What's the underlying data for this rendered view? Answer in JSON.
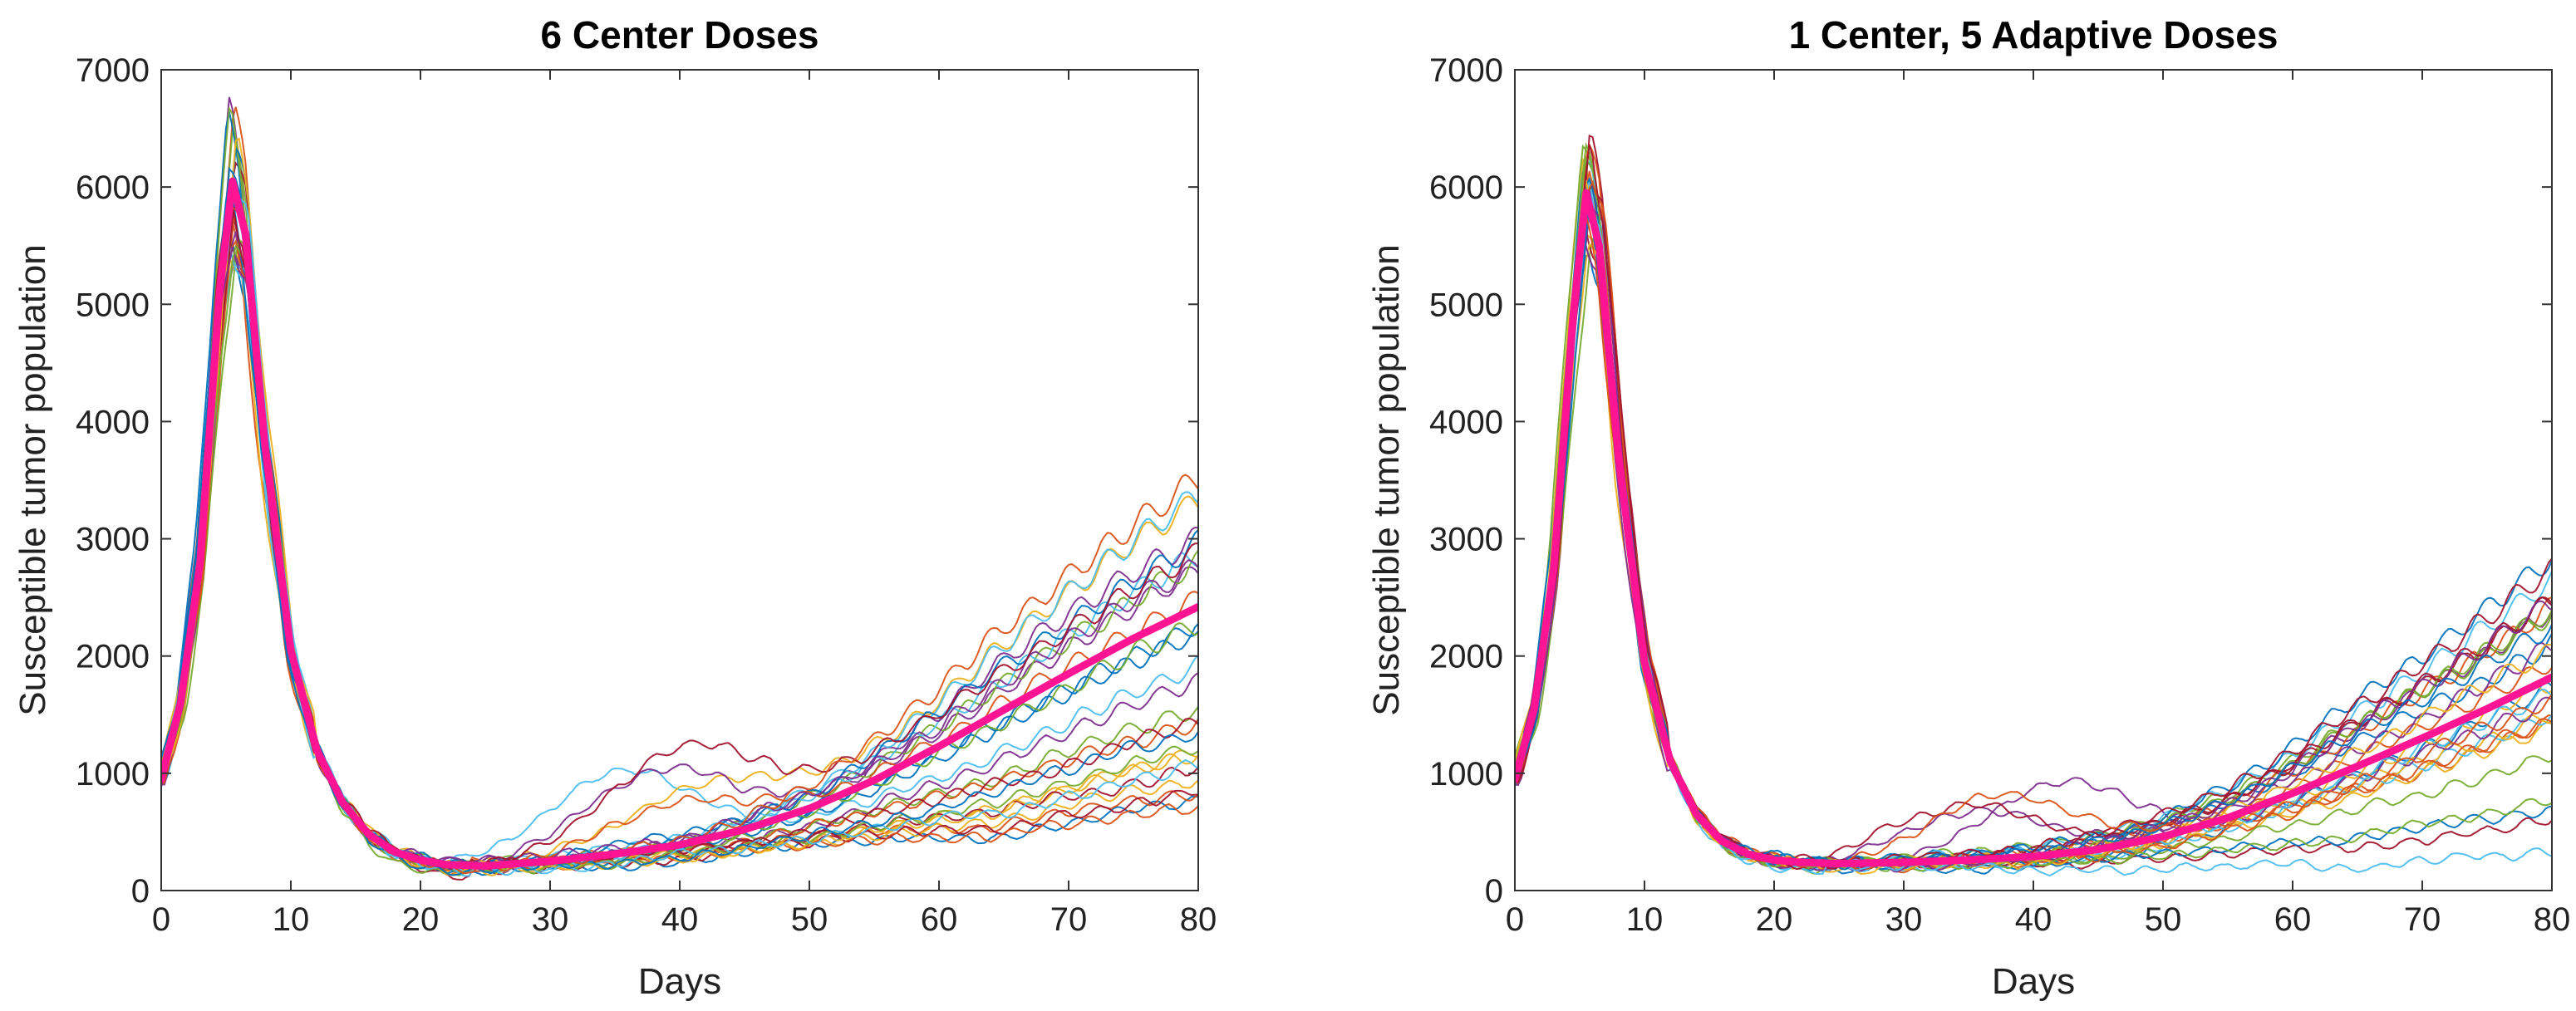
{
  "chart_data": [
    {
      "type": "line",
      "title": "6 Center Doses",
      "xlabel": "Days",
      "ylabel": "Susceptible tumor population",
      "xlim": [
        0,
        80
      ],
      "ylim": [
        0,
        7000
      ],
      "xticks": [
        "0",
        "10",
        "20",
        "30",
        "40",
        "50",
        "60",
        "70",
        "80"
      ],
      "yticks": [
        "0",
        "1000",
        "2000",
        "3000",
        "4000",
        "5000",
        "6000",
        "7000"
      ],
      "grid": false,
      "legend": "none",
      "individual_runs": {
        "count": 30,
        "final_value_range": [
          700,
          3500
        ],
        "peak_value_range": [
          5500,
          6650
        ],
        "palette": [
          "#0072BD",
          "#D95319",
          "#EDB120",
          "#7E2F8E",
          "#77AC30",
          "#4DBEEE",
          "#A2142F"
        ]
      },
      "mean_line": {
        "color": "#FF1493",
        "x": [
          0,
          1.5,
          3,
          4.5,
          5.5,
          6.5,
          8,
          10,
          12,
          14,
          16,
          18,
          20,
          22,
          25,
          30,
          35,
          40,
          45,
          50,
          55,
          60,
          65,
          70,
          75,
          80
        ],
        "y": [
          950,
          1600,
          2800,
          5100,
          6050,
          5600,
          3800,
          2050,
          1200,
          750,
          480,
          330,
          260,
          220,
          210,
          250,
          310,
          390,
          520,
          700,
          940,
          1230,
          1540,
          1850,
          2150,
          2420
        ]
      }
    },
    {
      "type": "line",
      "title": "1 Center, 5 Adaptive Doses",
      "xlabel": "Days",
      "ylabel": "Susceptible tumor population",
      "xlim": [
        0,
        80
      ],
      "ylim": [
        0,
        7000
      ],
      "xticks": [
        "0",
        "10",
        "20",
        "30",
        "40",
        "50",
        "60",
        "70",
        "80"
      ],
      "yticks": [
        "0",
        "1000",
        "2000",
        "3000",
        "4000",
        "5000",
        "6000",
        "7000"
      ],
      "grid": false,
      "legend": "none",
      "individual_runs": {
        "count": 30,
        "final_value_range": [
          300,
          2900
        ],
        "peak_value_range": [
          5450,
          6400
        ],
        "palette": [
          "#0072BD",
          "#D95319",
          "#EDB120",
          "#7E2F8E",
          "#77AC30",
          "#4DBEEE",
          "#A2142F"
        ]
      },
      "mean_line": {
        "color": "#FF1493",
        "x": [
          0,
          1.5,
          3,
          4.5,
          5.5,
          6.5,
          8,
          10,
          12,
          14,
          16,
          18,
          20,
          22,
          25,
          30,
          35,
          40,
          45,
          50,
          55,
          60,
          65,
          70,
          75,
          80
        ],
        "y": [
          950,
          1550,
          2750,
          4900,
          5950,
          5500,
          3700,
          1950,
          1100,
          650,
          420,
          310,
          260,
          240,
          230,
          240,
          260,
          290,
          350,
          460,
          620,
          830,
          1060,
          1300,
          1550,
          1820
        ]
      }
    }
  ]
}
